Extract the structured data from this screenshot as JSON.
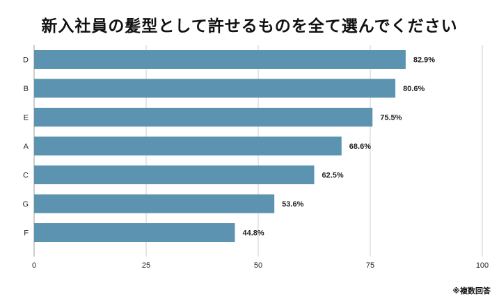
{
  "chart_data": {
    "type": "bar",
    "orientation": "horizontal",
    "title": "新入社員の髪型として許せるものを全て選んでください",
    "xlabel": "",
    "ylabel": "",
    "categories": [
      "D",
      "B",
      "E",
      "A",
      "C",
      "G",
      "F"
    ],
    "values": [
      82.9,
      80.6,
      75.5,
      68.6,
      62.5,
      53.6,
      44.8
    ],
    "data_labels": [
      "82.9%",
      "80.6%",
      "75.5%",
      "68.6%",
      "62.5%",
      "53.6%",
      "44.8%"
    ],
    "xlim": [
      0,
      100
    ],
    "x_ticks": [
      0,
      25,
      50,
      75,
      100
    ],
    "x_tick_labels": [
      "0",
      "25",
      "50",
      "75",
      "100"
    ],
    "grid": true,
    "legend": "none",
    "bar_color": "#5b93b0",
    "grid_color": "#cccccc"
  },
  "footnote": "※複数回答"
}
